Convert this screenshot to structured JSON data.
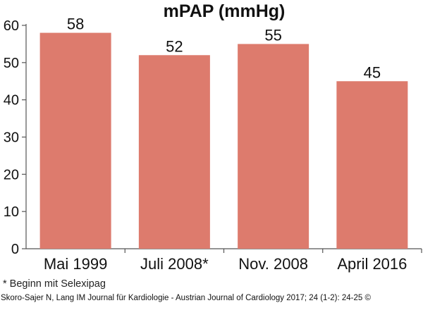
{
  "chart_data": {
    "type": "bar",
    "title": "mPAP (mmHg)",
    "xlabel": "",
    "ylabel": "",
    "categories": [
      "Mai 1999",
      "Juli 2008*",
      "Nov. 2008",
      "April 2016"
    ],
    "values": [
      58,
      52,
      55,
      45
    ],
    "data_labels": [
      "58",
      "52",
      "55",
      "45"
    ],
    "ylim": [
      0,
      60
    ],
    "yticks": [
      0,
      10,
      20,
      30,
      40,
      50,
      60
    ],
    "grid": false,
    "legend": "none",
    "bar_color": "#dd7b6d",
    "axis_color": "#555555"
  },
  "footnote": "* Beginn mit Selexipag",
  "citation": "Skoro-Sajer N, Lang IM Journal für Kardiologie - Austrian Journal of Cardiology 2017; 24 (1-2): 24-25 ©"
}
